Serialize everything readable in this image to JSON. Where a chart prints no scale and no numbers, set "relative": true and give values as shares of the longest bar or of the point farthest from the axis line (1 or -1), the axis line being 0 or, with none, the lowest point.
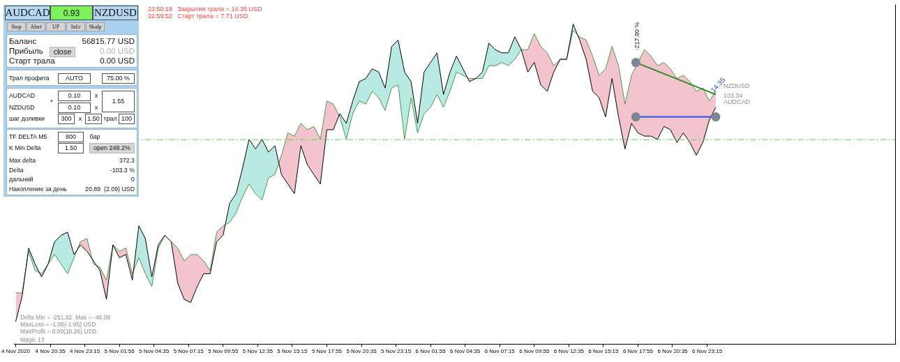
{
  "chart_data": [
    {
      "type": "other",
      "annotations": [
        "AUDCAD",
        "0.93",
        "NZDUSD",
        "Stop",
        "Alert",
        "UP",
        "Info",
        "Skalp",
        "Баланс",
        "56815.77 USD",
        "Прибыль",
        "close",
        "0.00 USD",
        "Старт трала",
        "0.00 USD",
        "Трал профита",
        "AUTO",
        "75.00 %",
        "AUDCAD",
        "+",
        "0.10",
        "x",
        "1.55",
        "NZDUSD",
        "0.10",
        "x",
        "шаг доливки",
        "300",
        "x",
        "1.50",
        "трал",
        "100",
        "TF DELTA M5",
        "800",
        "бар",
        "K Min Delta",
        "1.50",
        "open 248.2%",
        "Max delta",
        "372.3",
        "Delta",
        "-103.3 %",
        "дальний",
        "0",
        "Накопление за день",
        "20.89  (2.09) USD"
      ]
    },
    {
      "type": "line",
      "relative": true,
      "x": [
        "2020-11-04T17:55",
        "2020-11-04T18:25",
        "2020-11-04T18:55",
        "2020-11-04T19:25",
        "2020-11-04T19:55",
        "2020-11-04T20:25",
        "2020-11-04T20:55",
        "2020-11-04T21:25",
        "2020-11-04T21:55",
        "2020-11-04T22:25",
        "2020-11-04T22:55",
        "2020-11-04T23:25",
        "2020-11-04T23:55",
        "2020-11-05T00:25",
        "2020-11-05T00:55",
        "2020-11-05T01:25",
        "2020-11-05T01:55",
        "2020-11-05T02:25",
        "2020-11-05T02:55",
        "2020-11-05T03:25",
        "2020-11-05T03:55",
        "2020-11-05T04:25",
        "2020-11-05T04:55",
        "2020-11-05T05:25",
        "2020-11-05T05:55",
        "2020-11-05T06:25",
        "2020-11-05T06:55",
        "2020-11-05T07:25",
        "2020-11-05T07:55",
        "2020-11-05T08:25",
        "2020-11-05T08:55",
        "2020-11-05T09:25",
        "2020-11-05T09:55",
        "2020-11-05T10:25",
        "2020-11-05T10:55",
        "2020-11-05T11:25",
        "2020-11-05T11:55",
        "2020-11-05T12:25",
        "2020-11-05T12:55",
        "2020-11-05T13:25",
        "2020-11-05T13:55",
        "2020-11-05T14:25",
        "2020-11-05T14:55",
        "2020-11-05T15:25",
        "2020-11-05T15:55",
        "2020-11-05T16:25",
        "2020-11-05T16:55",
        "2020-11-05T17:25",
        "2020-11-05T17:55",
        "2020-11-05T18:25",
        "2020-11-05T18:55",
        "2020-11-05T19:25",
        "2020-11-05T19:55",
        "2020-11-05T20:25",
        "2020-11-05T20:55",
        "2020-11-05T21:25",
        "2020-11-05T21:55",
        "2020-11-05T22:25",
        "2020-11-05T22:55",
        "2020-11-05T23:25",
        "2020-11-05T23:55",
        "2020-11-06T00:25",
        "2020-11-06T00:55",
        "2020-11-06T01:25",
        "2020-11-06T01:55",
        "2020-11-06T02:25",
        "2020-11-06T02:55",
        "2020-11-06T03:25",
        "2020-11-06T03:55",
        "2020-11-06T04:25",
        "2020-11-06T04:55",
        "2020-11-06T05:25",
        "2020-11-06T05:55",
        "2020-11-06T06:25",
        "2020-11-06T06:55",
        "2020-11-06T07:25",
        "2020-11-06T07:55",
        "2020-11-06T08:25",
        "2020-11-06T08:55",
        "2020-11-06T09:25",
        "2020-11-06T09:55",
        "2020-11-06T10:25",
        "2020-11-06T10:55",
        "2020-11-06T11:25",
        "2020-11-06T11:55",
        "2020-11-06T12:25",
        "2020-11-06T12:55",
        "2020-11-06T13:25",
        "2020-11-06T13:55",
        "2020-11-06T14:25",
        "2020-11-06T14:55",
        "2020-11-06T15:25",
        "2020-11-06T15:55",
        "2020-11-06T16:25",
        "2020-11-06T16:55",
        "2020-11-06T17:25",
        "2020-11-06T17:55",
        "2020-11-06T18:25",
        "2020-11-06T18:55",
        "2020-11-06T19:25",
        "2020-11-06T19:55",
        "2020-11-06T20:25",
        "2020-11-06T20:55",
        "2020-11-06T21:25",
        "2020-11-06T21:55",
        "2020-11-06T22:25",
        "2020-11-06T22:55",
        "2020-11-06T23:25",
        "2020-11-06T23:55"
      ],
      "series": [
        {
          "name": "AUDCAD",
          "color": "#000000",
          "values": [
            0.07,
            0.15,
            0.3,
            0.25,
            0.21,
            0.25,
            0.32,
            0.34,
            0.35,
            0.28,
            0.31,
            0.29,
            0.26,
            0.23,
            0.14,
            0.31,
            0.27,
            0.28,
            0.2,
            0.37,
            0.33,
            0.21,
            0.31,
            0.34,
            0.32,
            0.19,
            0.14,
            0.13,
            0.18,
            0.22,
            0.22,
            0.32,
            0.34,
            0.44,
            0.47,
            0.55,
            0.64,
            0.61,
            0.64,
            0.6,
            0.62,
            0.53,
            0.5,
            0.47,
            0.62,
            0.56,
            0.53,
            0.5,
            0.67,
            0.67,
            0.72,
            0.69,
            0.76,
            0.82,
            0.83,
            0.86,
            0.85,
            0.8,
            0.93,
            0.95,
            0.85,
            0.82,
            0.69,
            0.85,
            0.88,
            0.91,
            0.78,
            0.85,
            0.9,
            0.86,
            0.82,
            0.83,
            0.85,
            0.94,
            0.92,
            0.91,
            0.91,
            0.96,
            0.92,
            0.85,
            0.88,
            0.81,
            0.79,
            0.85,
            0.89,
            0.89,
            1,
            0.95,
            0.89,
            0.79,
            0.77,
            0.71,
            0.83,
            0.71,
            0.61,
            0.69,
            0.66,
            0.65,
            0.65,
            0.64,
            0.68,
            0.67,
            0.63,
            0.66,
            0.63,
            0.59,
            0.63,
            0.7,
            0.74
          ]
        },
        {
          "name": "NZDUSD",
          "color": "#4c9a44",
          "values": [
            0.16,
            0.16,
            0.29,
            0.23,
            0.22,
            0.25,
            0.28,
            0.25,
            0.22,
            0.27,
            0.32,
            0.33,
            0.25,
            0.24,
            0.2,
            0.31,
            0.29,
            0.3,
            0.22,
            0.27,
            0.22,
            0.18,
            0.3,
            0.34,
            0.32,
            0.3,
            0.26,
            0.28,
            0.28,
            0.26,
            0.23,
            0.35,
            0.37,
            0.38,
            0.41,
            0.46,
            0.5,
            0.47,
            0.45,
            0.52,
            0.53,
            0.59,
            0.66,
            0.65,
            0.69,
            0.67,
            0.68,
            0.64,
            0.76,
            0.75,
            0.71,
            0.64,
            0.72,
            0.76,
            0.75,
            0.79,
            0.77,
            0.73,
            0.8,
            0.81,
            0.64,
            0.77,
            0.66,
            0.72,
            0.74,
            0.78,
            0.74,
            0.79,
            0.85,
            0.84,
            0.83,
            0.83,
            0.83,
            0.87,
            0.87,
            0.88,
            0.87,
            0.89,
            0.92,
            0.92,
            0.97,
            0.93,
            0.91,
            0.87,
            0.89,
            0.89,
            0.98,
            0.96,
            0.95,
            0.9,
            0.84,
            0.86,
            0.93,
            0.87,
            0.75,
            0.84,
            0.88,
            0.92,
            0.9,
            0.87,
            0.88,
            0.86,
            0.83,
            0.84,
            0.82,
            0.79,
            0.8,
            0.76,
            0.79
          ]
        },
        {
          "type": "line",
          "x": [
            "2020-11-06T17:45",
            "2020-11-06T23:55"
          ],
          "color": "#2e8b22",
          "values": [
            0.88,
            0.78
          ]
        },
        {
          "type": "line",
          "x": [
            "2020-11-06T17:45",
            "2020-11-06T23:55"
          ],
          "color": "#2b4ce0",
          "values": [
            0.71,
            0.71
          ]
        },
        {
          "type": "scatter",
          "x": [
            "2020-11-06T17:45",
            "2020-11-06T17:45",
            "2020-11-06T23:55"
          ],
          "color": "#7a8696",
          "marker": "circle",
          "values": [
            0.88,
            0.71,
            0.71
          ]
        }
      ],
      "xlim": [
        "2020-11-04T17:50",
        "2020-11-07T13:45"
      ],
      "xticks": [
        {
          "value": "2020-11-04T17:55",
          "label": "4 Nov 2020"
        },
        {
          "value": "2020-11-04T20:35",
          "label": "4 Nov 20:35"
        },
        {
          "value": "2020-11-04T23:15",
          "label": "4 Nov 23:15"
        },
        {
          "value": "2020-11-05T01:55",
          "label": "5 Nov 01:55"
        },
        {
          "value": "2020-11-05T04:35",
          "label": "5 Nov 04:35"
        },
        {
          "value": "2020-11-05T07:15",
          "label": "5 Nov 07:15"
        },
        {
          "value": "2020-11-05T09:55",
          "label": "5 Nov 09:55"
        },
        {
          "value": "2020-11-05T12:35",
          "label": "5 Nov 12:35"
        },
        {
          "value": "2020-11-05T15:15",
          "label": "5 Nov 15:15"
        },
        {
          "value": "2020-11-05T17:55",
          "label": "5 Nov 17:55"
        },
        {
          "value": "2020-11-05T20:35",
          "label": "5 Nov 20:35"
        },
        {
          "value": "2020-11-05T23:15",
          "label": "5 Nov 23:15"
        },
        {
          "value": "2020-11-06T01:55",
          "label": "6 Nov 01:55"
        },
        {
          "value": "2020-11-06T04:35",
          "label": "6 Nov 04:35"
        },
        {
          "value": "2020-11-06T07:15",
          "label": "6 Nov 07:15"
        },
        {
          "value": "2020-11-06T09:55",
          "label": "6 Nov 09:55"
        },
        {
          "value": "2020-11-06T12:35",
          "label": "6 Nov 12:35"
        },
        {
          "value": "2020-11-06T15:15",
          "label": "6 Nov 15:15"
        },
        {
          "value": "2020-11-06T17:55",
          "label": "6 Nov 17:55"
        },
        {
          "value": "2020-11-06T20:35",
          "label": "6 Nov 20:35"
        },
        {
          "value": "2020-11-06T23:15",
          "label": "6 Nov 23:15"
        }
      ],
      "ref_lines": [
        {
          "axis": "y",
          "value": 0.64,
          "color": "#4cd94c",
          "line_style": "dashed"
        }
      ],
      "annotations": [
        "23:50:18   Закрытия трала = 14.35 USD",
        "22:59:52   Старт трала = 7.71 USD",
        "Delta Min = -251.82  Max = -46.08",
        "MaxLoss = -1.95(-1.95) USD",
        "MaxProfit = 0.00(19.26) USD",
        "Magic 13",
        {
          "text": "-217.90 %",
          "x": "2020-11-06T17:45",
          "y": 0.88
        },
        {
          "text": "14.35",
          "x": "2020-11-06T23:55",
          "y": 0.78
        },
        {
          "text": "103.34",
          "x": "2020-11-06T23:55",
          "y": 0.78
        }
      ]
    }
  ]
}
